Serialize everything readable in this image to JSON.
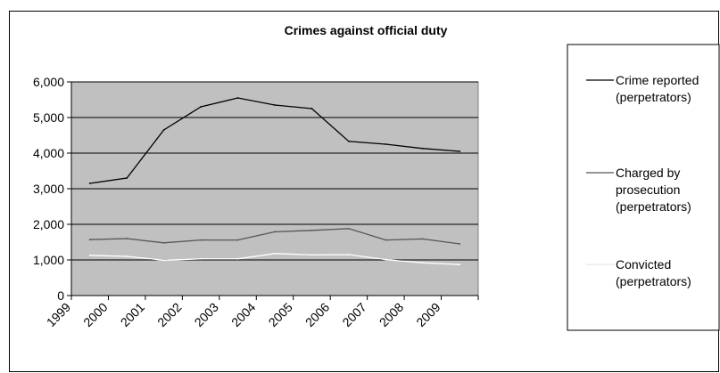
{
  "chart_data": {
    "type": "line",
    "title": "Crimes against official duty",
    "xlabel": "",
    "ylabel": "",
    "categories": [
      "1999",
      "2000",
      "2001",
      "2002",
      "2003",
      "2004",
      "2005",
      "2006",
      "2007",
      "2008",
      "2009"
    ],
    "y_ticks": [
      "0",
      "1,000",
      "2,000",
      "3,000",
      "4,000",
      "5,000",
      "6,000"
    ],
    "ylim": [
      0,
      6000
    ],
    "grid": true,
    "plot_background": "#c0c0c0",
    "legend_position": "right",
    "series": [
      {
        "name": "Crime reported (perpetrators)",
        "legend_lines": [
          "Crime reported",
          "(perpetrators)"
        ],
        "color": "#000000",
        "values": [
          3150,
          3300,
          4650,
          5300,
          5550,
          5350,
          5250,
          4330,
          4250,
          4130,
          4050
        ]
      },
      {
        "name": "Charged by prosecution (perpetrators)",
        "legend_lines": [
          "Charged by",
          "prosecution",
          "(perpetrators)"
        ],
        "color": "#555555",
        "values": [
          1570,
          1600,
          1480,
          1560,
          1560,
          1790,
          1830,
          1880,
          1560,
          1590,
          1450
        ]
      },
      {
        "name": "Convicted (perpetrators)",
        "legend_lines": [
          "Convicted",
          "(perpetrators)"
        ],
        "color": "#ffffff",
        "values": [
          1130,
          1100,
          990,
          1030,
          1030,
          1180,
          1140,
          1150,
          1010,
          920,
          870
        ]
      }
    ]
  }
}
